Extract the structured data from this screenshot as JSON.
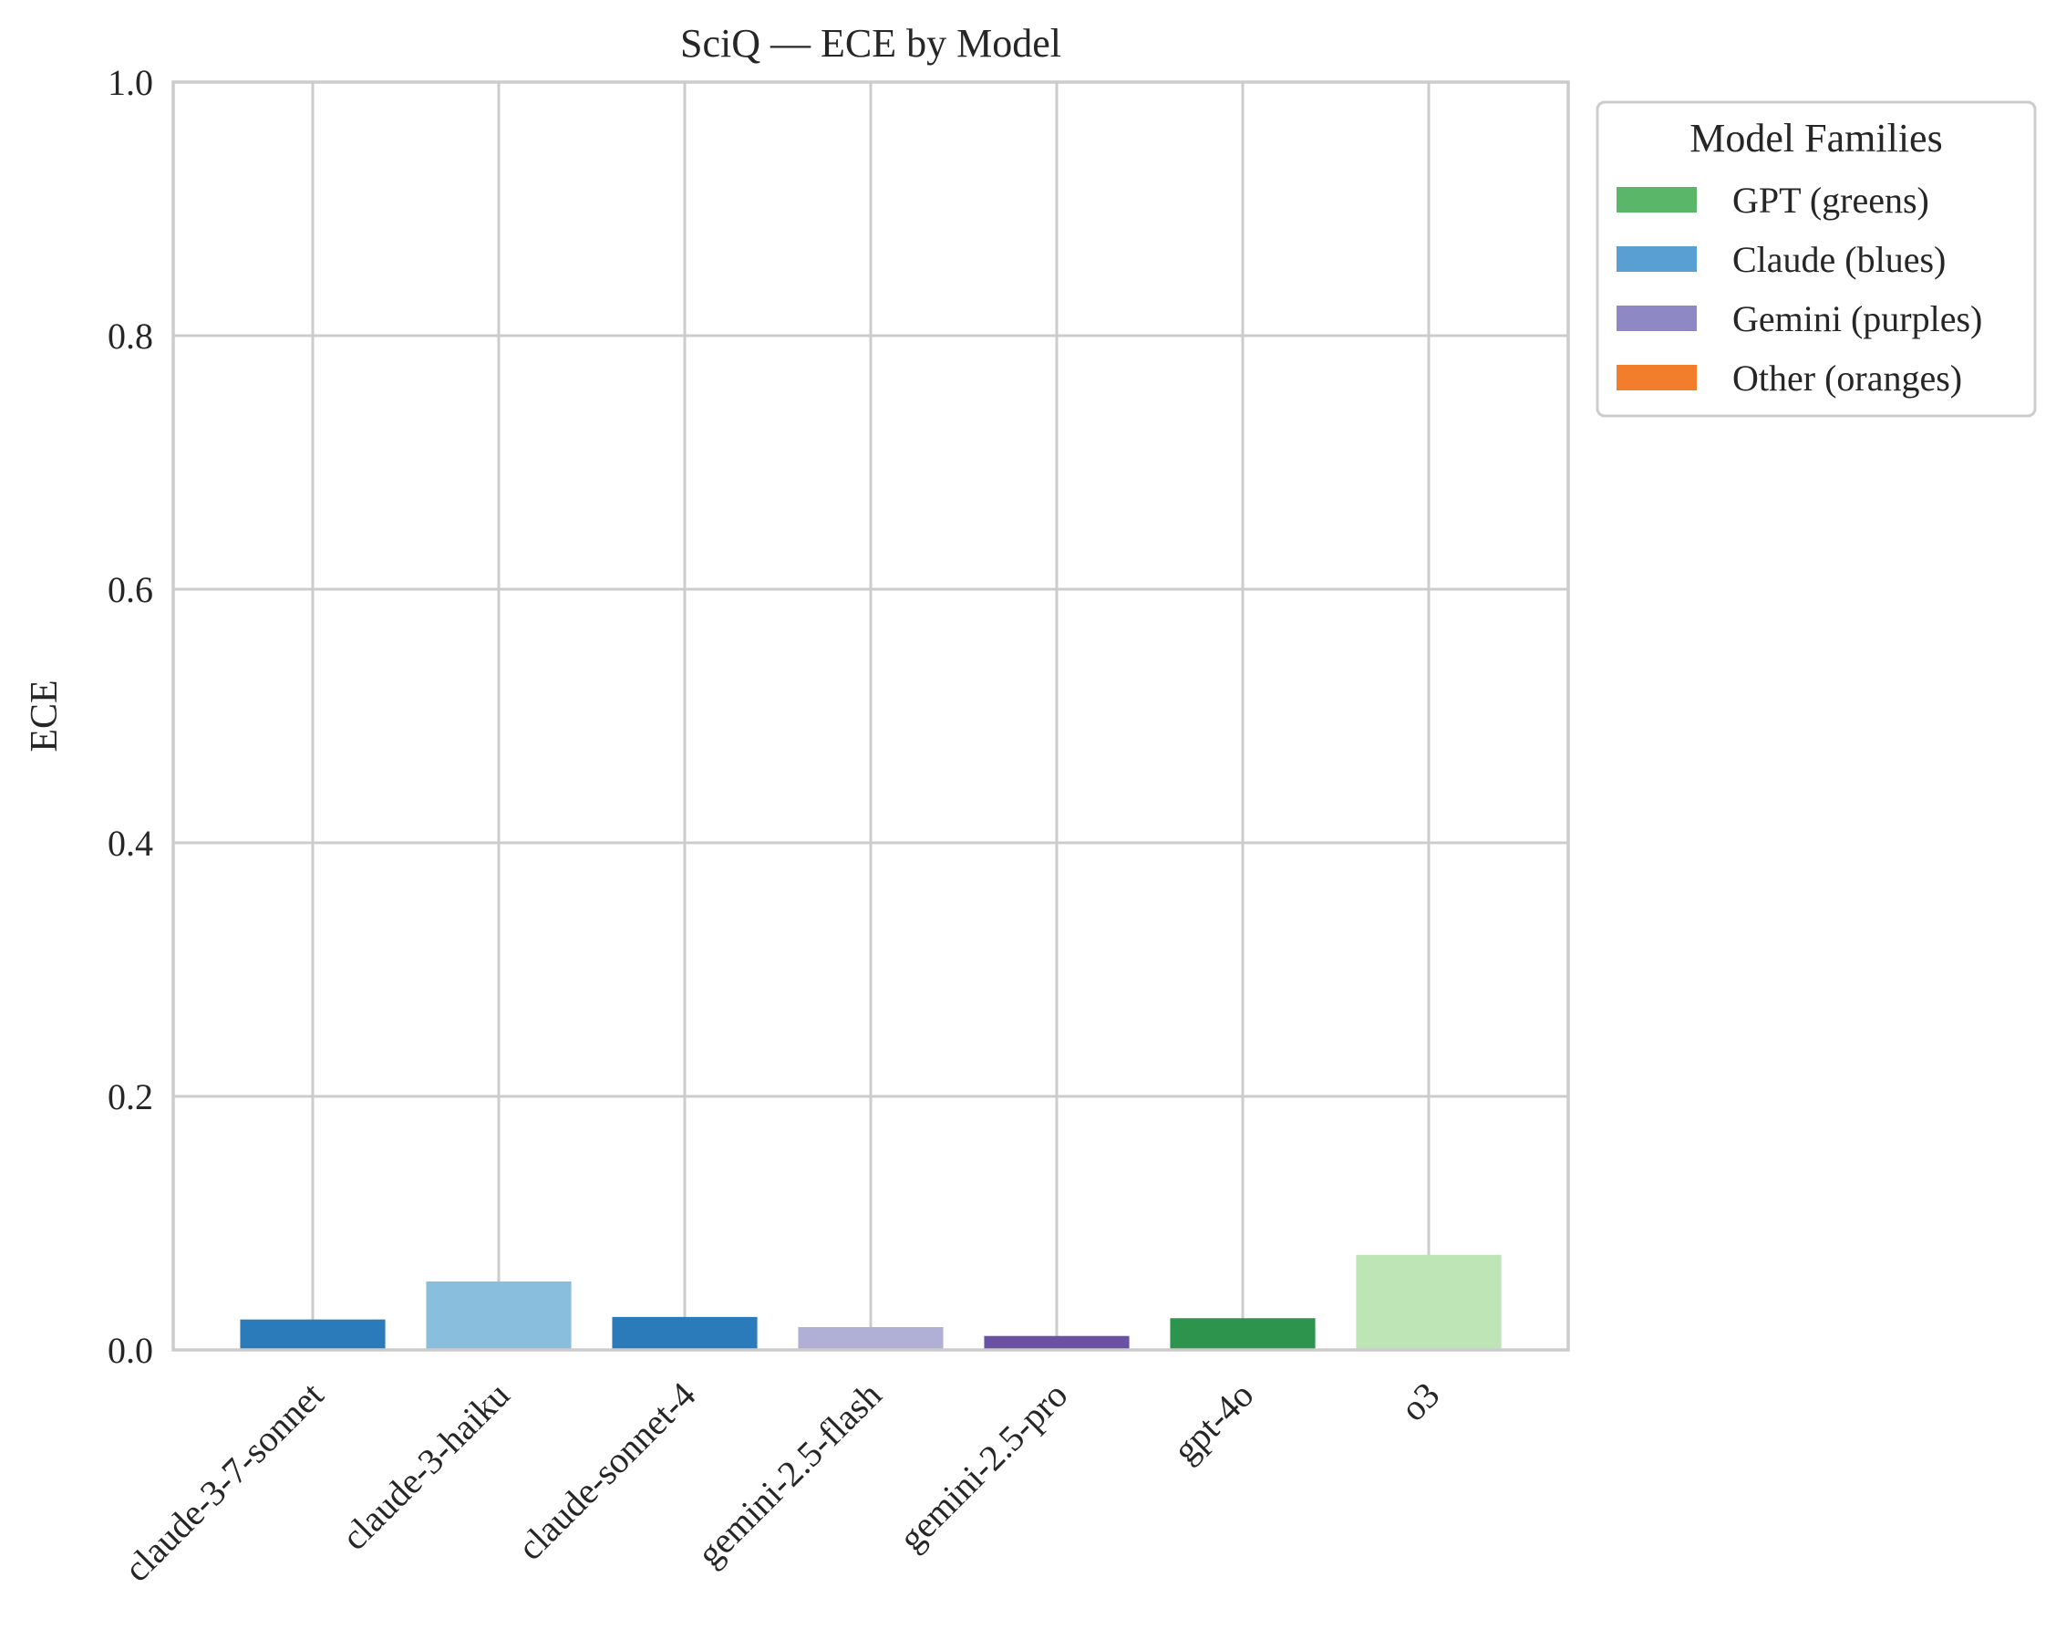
{
  "chart_data": {
    "type": "bar",
    "title": "SciQ — ECE by Model",
    "xlabel": "",
    "ylabel": "ECE",
    "ylim": [
      0,
      1.0
    ],
    "yticks": [
      "0.0",
      "0.2",
      "0.4",
      "0.6",
      "0.8",
      "1.0"
    ],
    "grid": true,
    "categories": [
      "claude-3-7-sonnet",
      "claude-3-haiku",
      "claude-sonnet-4",
      "gemini-2.5-flash",
      "gemini-2.5-pro",
      "gpt-4o",
      "o3"
    ],
    "values": [
      0.024,
      0.054,
      0.026,
      0.018,
      0.011,
      0.025,
      0.075
    ],
    "bar_colors": [
      "#2b7bba",
      "#89bedc",
      "#2b7bba",
      "#b0afd5",
      "#6a51a3",
      "#2c944c",
      "#bde5b5"
    ],
    "legend": {
      "title": "Model Families",
      "position": "outside-top-right",
      "entries": [
        {
          "label": "GPT (greens)",
          "color": "#5ab769"
        },
        {
          "label": "Claude (blues)",
          "color": "#5a9fd1"
        },
        {
          "label": "Gemini (purples)",
          "color": "#8e89c4"
        },
        {
          "label": "Other (oranges)",
          "color": "#f27d2b"
        }
      ]
    }
  }
}
